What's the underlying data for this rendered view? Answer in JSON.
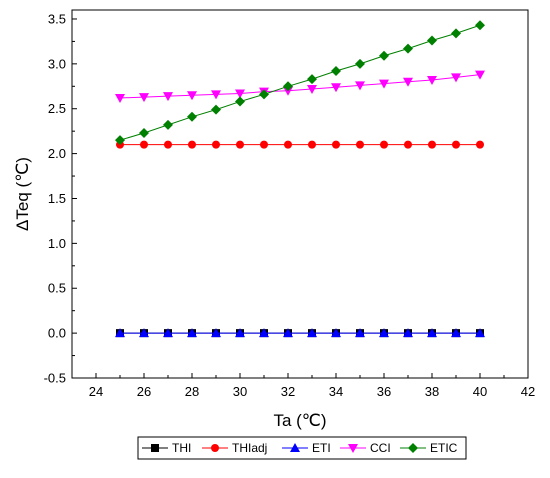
{
  "chart_data": {
    "type": "line",
    "title": "",
    "xlabel": "Ta (℃)",
    "ylabel": "ΔTeq (℃)",
    "xlim": [
      23,
      42
    ],
    "ylim": [
      -0.5,
      3.6
    ],
    "x_ticks": [
      24,
      26,
      28,
      30,
      32,
      34,
      36,
      38,
      40,
      42
    ],
    "y_ticks": [
      -0.5,
      0.0,
      0.5,
      1.0,
      1.5,
      2.0,
      2.5,
      3.0,
      3.5
    ],
    "x_tick_labels": [
      "24",
      "26",
      "28",
      "30",
      "32",
      "34",
      "36",
      "38",
      "40",
      "42"
    ],
    "y_tick_labels": [
      "-0.5",
      "0.0",
      "0.5",
      "1.0",
      "1.5",
      "2.0",
      "2.5",
      "3.0",
      "3.5"
    ],
    "grid": false,
    "legend_position": "bottom",
    "x": [
      25,
      26,
      27,
      28,
      29,
      30,
      31,
      32,
      33,
      34,
      35,
      36,
      37,
      38,
      39,
      40
    ],
    "series": [
      {
        "name": "THI",
        "marker": "square",
        "color": "#000000",
        "values": [
          0,
          0,
          0,
          0,
          0,
          0,
          0,
          0,
          0,
          0,
          0,
          0,
          0,
          0,
          0,
          0
        ]
      },
      {
        "name": "THIadj",
        "marker": "circle",
        "color": "#ff0000",
        "values": [
          2.1,
          2.1,
          2.1,
          2.1,
          2.1,
          2.1,
          2.1,
          2.1,
          2.1,
          2.1,
          2.1,
          2.1,
          2.1,
          2.1,
          2.1,
          2.1
        ]
      },
      {
        "name": "ETI",
        "marker": "triangle-up",
        "color": "#0000ff",
        "values": [
          0,
          0,
          0,
          0,
          0,
          0,
          0,
          0,
          0,
          0,
          0,
          0,
          0,
          0,
          0,
          0
        ]
      },
      {
        "name": "CCI",
        "marker": "triangle-down",
        "color": "#ff00ff",
        "values": [
          2.62,
          2.63,
          2.64,
          2.65,
          2.66,
          2.67,
          2.69,
          2.7,
          2.72,
          2.74,
          2.76,
          2.78,
          2.8,
          2.82,
          2.85,
          2.88
        ]
      },
      {
        "name": "ETIC",
        "marker": "diamond",
        "color": "#008000",
        "values": [
          2.15,
          2.23,
          2.32,
          2.41,
          2.49,
          2.58,
          2.66,
          2.75,
          2.83,
          2.92,
          3.0,
          3.09,
          3.17,
          3.26,
          3.34,
          3.43
        ]
      }
    ]
  }
}
